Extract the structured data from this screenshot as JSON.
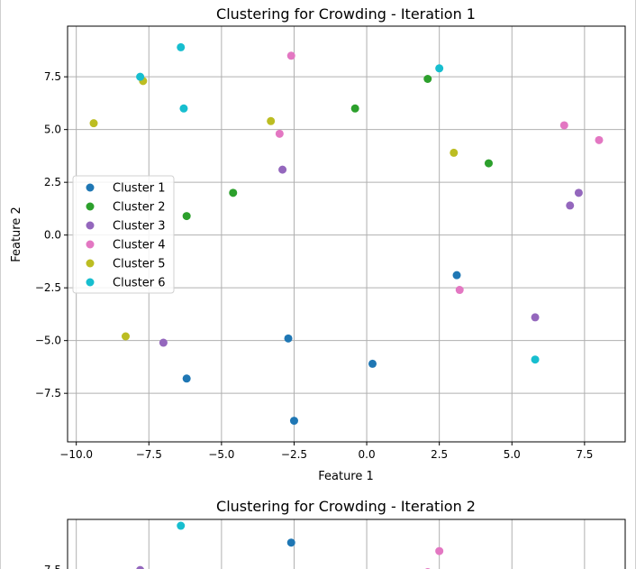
{
  "chart_data": [
    {
      "type": "scatter",
      "title": "Clustering for Crowding - Iteration 1",
      "xlabel": "Feature 1",
      "ylabel": "Feature 2",
      "xlim": [
        -10.3,
        8.9
      ],
      "ylim": [
        -9.8,
        9.9
      ],
      "xticks": [
        -10.0,
        -7.5,
        -5.0,
        -2.5,
        0.0,
        2.5,
        5.0,
        7.5
      ],
      "xtick_labels": [
        "−10.0",
        "−7.5",
        "−5.0",
        "−2.5",
        "0.0",
        "2.5",
        "5.0",
        "7.5"
      ],
      "yticks": [
        -7.5,
        -5.0,
        -2.5,
        0.0,
        2.5,
        5.0,
        7.5
      ],
      "ytick_labels": [
        "−7.5",
        "−5.0",
        "−2.5",
        "0.0",
        "2.5",
        "5.0",
        "7.5"
      ],
      "grid": true,
      "legend": "center-left",
      "series": [
        {
          "name": "Cluster 1",
          "color": "#1f77b4",
          "points": [
            [
              3.1,
              -1.9
            ],
            [
              -2.7,
              -4.9
            ],
            [
              0.2,
              -6.1
            ],
            [
              -6.2,
              -6.8
            ],
            [
              -2.5,
              -8.8
            ]
          ]
        },
        {
          "name": "Cluster 2",
          "color": "#2ca02c",
          "points": [
            [
              2.1,
              7.4
            ],
            [
              -0.4,
              6.0
            ],
            [
              4.2,
              3.4
            ],
            [
              -4.6,
              2.0
            ],
            [
              -6.2,
              0.9
            ]
          ]
        },
        {
          "name": "Cluster 3",
          "color": "#9467bd",
          "points": [
            [
              -2.9,
              3.1
            ],
            [
              7.3,
              2.0
            ],
            [
              7.0,
              1.4
            ],
            [
              5.8,
              -3.9
            ],
            [
              -7.0,
              -5.1
            ]
          ]
        },
        {
          "name": "Cluster 4",
          "color": "#e377c2",
          "points": [
            [
              -2.6,
              8.5
            ],
            [
              -3.0,
              4.8
            ],
            [
              6.8,
              5.2
            ],
            [
              8.0,
              4.5
            ],
            [
              3.2,
              -2.6
            ]
          ]
        },
        {
          "name": "Cluster 5",
          "color": "#bcbd22",
          "points": [
            [
              -7.7,
              7.3
            ],
            [
              -9.4,
              5.3
            ],
            [
              -3.3,
              5.4
            ],
            [
              3.0,
              3.9
            ],
            [
              -8.3,
              -4.8
            ]
          ]
        },
        {
          "name": "Cluster 6",
          "color": "#17becf",
          "points": [
            [
              -6.4,
              8.9
            ],
            [
              -7.8,
              7.5
            ],
            [
              -6.3,
              6.0
            ],
            [
              2.5,
              7.9
            ],
            [
              5.8,
              -5.9
            ]
          ]
        }
      ]
    },
    {
      "type": "scatter",
      "title": "Clustering for Crowding - Iteration 2",
      "ylim": [
        -9.8,
        9.9
      ],
      "yticks": [
        7.5
      ],
      "ytick_labels": [
        "7.5"
      ],
      "grid": true,
      "series": [
        {
          "name": "Cluster 1",
          "color": "#1f77b4",
          "points": [
            [
              -2.6,
              8.8
            ]
          ]
        },
        {
          "name": "Cluster 3",
          "color": "#9467bd",
          "points": [
            [
              -7.8,
              7.5
            ]
          ]
        },
        {
          "name": "Cluster 4",
          "color": "#e377c2",
          "points": [
            [
              2.5,
              8.4
            ],
            [
              2.1,
              7.4
            ]
          ]
        },
        {
          "name": "Cluster 6",
          "color": "#17becf",
          "points": [
            [
              -6.4,
              9.6
            ]
          ]
        }
      ]
    }
  ]
}
